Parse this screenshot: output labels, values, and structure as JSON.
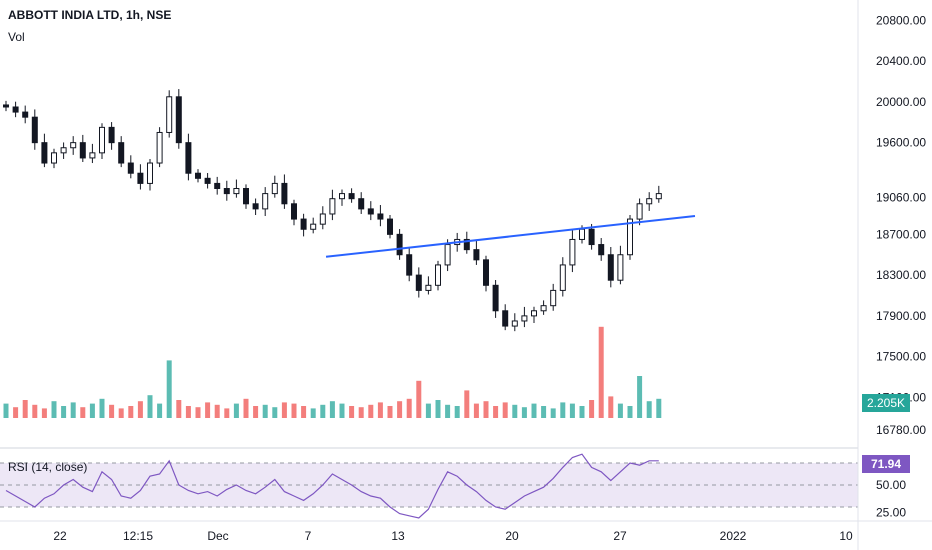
{
  "header": {
    "title": "ABBOTT INDIA LTD, 1h, NSE",
    "vol_label": "Vol",
    "rsi_label": "RSI (14, close)"
  },
  "badges": {
    "volume": "2.205K",
    "rsi": "71.94"
  },
  "colors": {
    "up": "#26a69a",
    "down": "#ef5350",
    "candle": "#131722",
    "trendline": "#2962ff",
    "rsi_line": "#7e57c2",
    "rsi_band": "#ede7f6"
  },
  "chart_data": [
    {
      "type": "candlestick",
      "title": "ABBOTT INDIA LTD, 1h, NSE",
      "ylim": [
        16780,
        21000
      ],
      "y_ticks": [
        "20800.00",
        "20400.00",
        "20000.00",
        "19600.00",
        "19060.00",
        "18700.00",
        "18300.00",
        "17900.00",
        "17500.00",
        "17100.00",
        "16780.00"
      ],
      "x_ticks": [
        "22",
        "12:15",
        "Dec",
        "7",
        "13",
        "20",
        "27",
        "2022",
        "10"
      ],
      "close_path": [
        19950,
        19900,
        19850,
        19600,
        19400,
        19500,
        19550,
        19600,
        19450,
        19500,
        19750,
        19600,
        19400,
        19300,
        19200,
        19400,
        19700,
        20050,
        19600,
        19300,
        19250,
        19200,
        19150,
        19100,
        19150,
        19000,
        18950,
        19100,
        19200,
        19000,
        18850,
        18750,
        18800,
        18900,
        19050,
        19100,
        19050,
        18950,
        18900,
        18850,
        18700,
        18500,
        18300,
        18150,
        18200,
        18400,
        18600,
        18650,
        18550,
        18450,
        18200,
        17950,
        17800,
        17850,
        17900,
        17950,
        18000,
        18150,
        18400,
        18650,
        18750,
        18600,
        18500,
        18250,
        18500,
        18850,
        19000,
        19050,
        19100
      ],
      "trendline": {
        "from": [
          0.38,
          18480
        ],
        "to": [
          0.81,
          18880
        ]
      },
      "volume": {
        "label": "Vol",
        "last": "2.205K",
        "bars": [
          1.2,
          0.9,
          1.5,
          1.1,
          0.8,
          1.4,
          1.0,
          1.3,
          0.9,
          1.2,
          1.6,
          1.1,
          0.8,
          1.0,
          1.4,
          1.9,
          1.2,
          4.8,
          1.5,
          1.0,
          0.9,
          1.3,
          1.1,
          0.8,
          1.2,
          1.6,
          1.0,
          1.1,
          0.9,
          1.3,
          1.2,
          1.0,
          0.8,
          1.1,
          1.4,
          1.2,
          1.0,
          0.9,
          1.1,
          1.3,
          1.0,
          1.4,
          1.6,
          3.1,
          1.2,
          1.5,
          1.1,
          1.0,
          2.3,
          1.2,
          1.4,
          1.0,
          1.3,
          1.1,
          0.9,
          1.2,
          1.0,
          0.8,
          1.3,
          1.2,
          1.0,
          1.5,
          7.6,
          1.8,
          1.2,
          1.0,
          3.5,
          1.4,
          1.6
        ]
      }
    },
    {
      "type": "line",
      "title": "RSI (14, close)",
      "ylim": [
        20,
        80
      ],
      "y_ticks": [
        "50.00",
        "25.00"
      ],
      "band": [
        30,
        70
      ],
      "last": "71.94",
      "values": [
        45,
        40,
        35,
        30,
        38,
        42,
        50,
        55,
        48,
        44,
        62,
        55,
        40,
        38,
        45,
        58,
        60,
        72,
        50,
        45,
        42,
        44,
        40,
        46,
        50,
        45,
        42,
        48,
        55,
        44,
        40,
        36,
        42,
        50,
        60,
        55,
        50,
        44,
        40,
        38,
        30,
        24,
        22,
        20,
        28,
        46,
        62,
        58,
        50,
        44,
        36,
        30,
        28,
        34,
        40,
        44,
        48,
        56,
        66,
        75,
        78,
        66,
        62,
        54,
        62,
        70,
        68,
        72,
        72
      ]
    }
  ]
}
